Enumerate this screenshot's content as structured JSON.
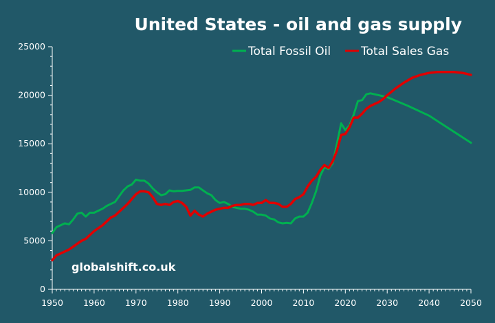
{
  "chart_data": {
    "type": "line",
    "title": "United States - oil and gas supply",
    "xlabel": "",
    "ylabel": "",
    "xlim": [
      1950,
      2050
    ],
    "ylim": [
      0,
      25000
    ],
    "x_ticks": [
      "1950",
      "1960",
      "1970",
      "1980",
      "1990",
      "2000",
      "2010",
      "2020",
      "2030",
      "2040",
      "2050"
    ],
    "y_ticks": [
      "0",
      "5000",
      "10000",
      "15000",
      "20000",
      "25000"
    ],
    "grid": false,
    "legend_position": "top-right",
    "annotation": "globalshift.co.uk",
    "series": [
      {
        "name": "Total Fossil Oil",
        "color": "#00b050",
        "x": [
          1950,
          1951,
          1952,
          1953,
          1954,
          1955,
          1956,
          1957,
          1958,
          1959,
          1960,
          1961,
          1962,
          1963,
          1964,
          1965,
          1966,
          1967,
          1968,
          1969,
          1970,
          1971,
          1972,
          1973,
          1974,
          1975,
          1976,
          1977,
          1978,
          1979,
          1980,
          1981,
          1982,
          1983,
          1984,
          1985,
          1986,
          1987,
          1988,
          1989,
          1990,
          1991,
          1992,
          1993,
          1994,
          1995,
          1996,
          1997,
          1998,
          1999,
          2000,
          2001,
          2002,
          2003,
          2004,
          2005,
          2006,
          2007,
          2008,
          2009,
          2010,
          2011,
          2012,
          2013,
          2014,
          2015,
          2016,
          2017,
          2018,
          2019,
          2020,
          2021,
          2022,
          2023,
          2024,
          2025,
          2026,
          2027,
          2028,
          2029,
          2030,
          2035,
          2040,
          2045,
          2050
        ],
        "values": [
          5800,
          6400,
          6600,
          6800,
          6700,
          7200,
          7800,
          7900,
          7500,
          7900,
          7900,
          8100,
          8300,
          8600,
          8800,
          9000,
          9600,
          10200,
          10600,
          10800,
          11300,
          11200,
          11200,
          10900,
          10400,
          10000,
          9700,
          9800,
          10200,
          10100,
          10150,
          10150,
          10200,
          10250,
          10500,
          10500,
          10200,
          9900,
          9700,
          9200,
          8900,
          9000,
          8800,
          8500,
          8400,
          8300,
          8300,
          8200,
          8000,
          7700,
          7700,
          7600,
          7300,
          7200,
          6900,
          6800,
          6850,
          6800,
          7300,
          7500,
          7500,
          7900,
          8900,
          10100,
          11700,
          12600,
          12400,
          13000,
          15000,
          17100,
          16400,
          16900,
          18000,
          19400,
          19500,
          20100,
          20200,
          20100,
          20000,
          19900,
          19800,
          18900,
          17900,
          16500,
          15100
        ]
      },
      {
        "name": "Total Sales Gas",
        "color": "#e00000",
        "x": [
          1950,
          1951,
          1952,
          1953,
          1954,
          1955,
          1956,
          1957,
          1958,
          1959,
          1960,
          1961,
          1962,
          1963,
          1964,
          1965,
          1966,
          1967,
          1968,
          1969,
          1970,
          1971,
          1972,
          1973,
          1974,
          1975,
          1976,
          1977,
          1978,
          1979,
          1980,
          1981,
          1982,
          1983,
          1984,
          1985,
          1986,
          1987,
          1988,
          1989,
          1990,
          1991,
          1992,
          1993,
          1994,
          1995,
          1996,
          1997,
          1998,
          1999,
          2000,
          2001,
          2002,
          2003,
          2004,
          2005,
          2006,
          2007,
          2008,
          2009,
          2010,
          2011,
          2012,
          2013,
          2014,
          2015,
          2016,
          2017,
          2018,
          2019,
          2020,
          2021,
          2022,
          2023,
          2024,
          2025,
          2026,
          2027,
          2028,
          2029,
          2030,
          2032,
          2034,
          2036,
          2038,
          2040,
          2042,
          2044,
          2046,
          2048,
          2050
        ],
        "values": [
          3000,
          3500,
          3700,
          3900,
          4100,
          4400,
          4700,
          5000,
          5200,
          5600,
          6000,
          6300,
          6600,
          7000,
          7400,
          7600,
          8000,
          8400,
          8800,
          9300,
          9800,
          10100,
          10100,
          10000,
          9500,
          8800,
          8700,
          8800,
          8700,
          9000,
          9100,
          8900,
          8500,
          7600,
          8100,
          7700,
          7500,
          7800,
          8000,
          8200,
          8300,
          8400,
          8400,
          8600,
          8700,
          8700,
          8800,
          8800,
          8700,
          8900,
          8900,
          9200,
          8900,
          8900,
          8800,
          8500,
          8500,
          8800,
          9300,
          9500,
          9800,
          10600,
          11200,
          11600,
          12300,
          12800,
          12500,
          13200,
          14300,
          15900,
          16000,
          16700,
          17700,
          17700,
          18100,
          18600,
          18900,
          19100,
          19300,
          19600,
          20000,
          20700,
          21300,
          21800,
          22100,
          22300,
          22400,
          22400,
          22400,
          22300,
          22100
        ]
      }
    ]
  }
}
